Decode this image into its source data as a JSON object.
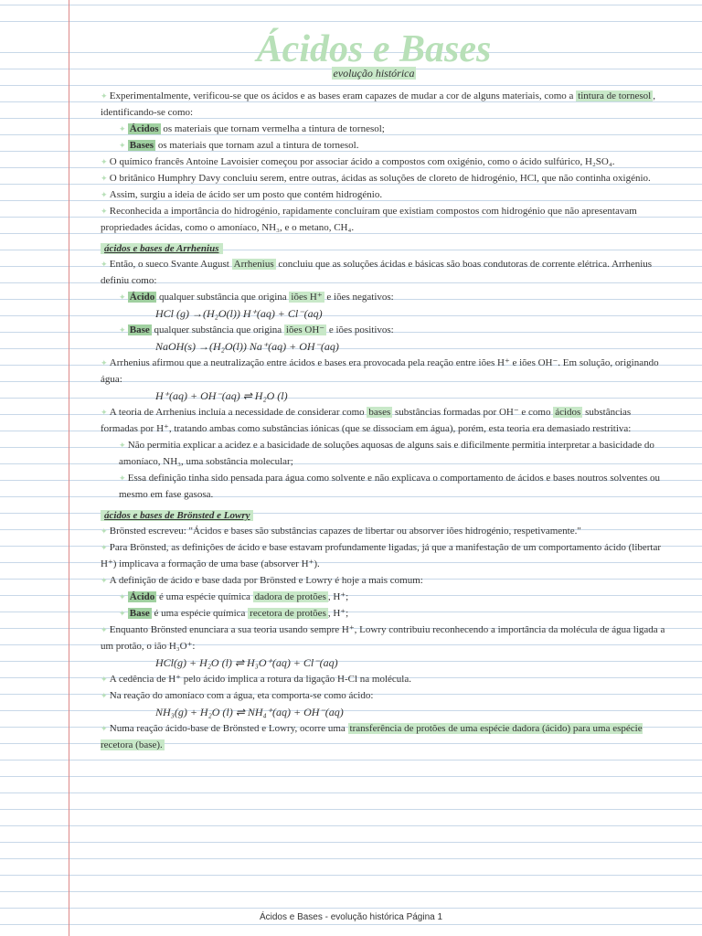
{
  "title": "Ácidos e Bases",
  "subtitle": "evolução histórica",
  "p1": "Experimentalmente, verificou-se que os ácidos e as bases eram capazes de mudar a cor de alguns materiais, como a ",
  "p1h": "tintura de tornesol",
  "p1b": ", identificando-se como:",
  "li1a": "Ácidos",
  "li1b": " os materiais que tornam vermelha a tintura de tornesol;",
  "li2a": "Bases",
  "li2b": " os materiais que tornam azul a tintura de tornesol.",
  "p2": "O químico francês Antoine Lavoisier começou por associar ácido a compostos com oxigénio, como o ácido sulfúrico, H₂SO₄.",
  "p3": "O britânico Humphry Davy concluiu serem, entre outras, ácidas as soluções de cloreto de hidrogénio, HCl, que não continha oxigénio.",
  "p4": "Assim, surgiu a ideia de ácido ser um posto que contém hidrogénio.",
  "p5": "Reconhecida a importância do hidrogénio, rapidamente concluíram que existiam compostos com hidrogénio que não apresentavam propriedades ácidas, como o amoníaco, NH₃, e o metano, CH₄.",
  "sec1": "ácidos e bases de Arrhenius",
  "s1p1": "Então, o sueco Svante August ",
  "s1p1h": "Arrhenius",
  "s1p1b": " concluiu que as soluções ácidas e básicas são boas condutoras de corrente elétrica. Arrhenius definiu como:",
  "s1li1a": "Ácido",
  "s1li1b": " qualquer substância que origina ",
  "s1li1c": "iões H⁺",
  "s1li1d": " e iões negativos:",
  "s1f1": "HCl (g) →(H₂O(l)) H⁺(aq) + Cl⁻(aq)",
  "s1li2a": "Base",
  "s1li2b": " qualquer substância que origina ",
  "s1li2c": "iões OH⁻",
  "s1li2d": " e iões positivos:",
  "s1f2": "NaOH(s) →(H₂O(l)) Na⁺(aq) + OH⁻(aq)",
  "s1p2": "Arrhenius afirmou que a neutralização entre ácidos e bases era provocada pela reação entre iões H⁺ e iões OH⁻. Em solução, originando água:",
  "s1f3": "H⁺(aq) + OH⁻(aq) ⇌ H₂O (l)",
  "s1p3a": "A teoria de Arrhenius incluía a necessidade de considerar como ",
  "s1p3h1": "bases",
  "s1p3b": " substâncias formadas por OH⁻ e como ",
  "s1p3h2": "ácidos",
  "s1p3c": " substâncias formadas por H⁺, tratando ambas como substâncias iónicas (que se dissociam em água), porém, esta teoria era demasiado restritiva:",
  "s1p4": "Não permitia explicar a acidez e a basicidade de soluções aquosas de alguns sais e dificilmente permitia interpretar a basicidade do amoníaco, NH₃, uma sobstância molecular;",
  "s1p5": "Essa definição tinha sido pensada para água como solvente e não explicava o comportamento de ácidos e bases noutros solventes ou mesmo em fase gasosa.",
  "sec2": "ácidos e bases de Brönsted e Lowry",
  "s2p1": "Brönsted escreveu: \"Ácidos e bases são substâncias capazes de libertar ou absorver iões hidrogénio, respetivamente.\"",
  "s2p2": "Para Brönsted, as definições de ácido e base estavam profundamente ligadas, já que a manifestação de um comportamento ácido (libertar H⁺) implicava a formação de uma base (absorver H⁺).",
  "s2p3": "A definição de ácido e base dada por Brönsted e Lowry é hoje a mais comum:",
  "s2li1a": "Ácido",
  "s2li1b": " é uma espécie química ",
  "s2li1c": "dadora de protões",
  "s2li1d": ", H⁺;",
  "s2li2a": "Base",
  "s2li2b": " é uma espécie química ",
  "s2li2c": "recetora de protões",
  "s2li2d": ", H⁺;",
  "s2p4": "Enquanto Brönsted enunciara a sua teoria usando sempre H⁺, Lowry contribuiu reconhecendo a importância da molécula de água ligada a um protão, o ião H₃O⁺:",
  "s2f1": "HCl(g) + H₂O (l) ⇌ H₃O⁺(aq) + Cl⁻(aq)",
  "s2p5": "A cedência de H⁺ pelo ácido implica a rotura da ligação H-Cl na molécula.",
  "s2p6": "Na reação do amoníaco com a água, eta comporta-se como ácido:",
  "s2f2": "NH₃(g) + H₂O (l) ⇌ NH₄⁺(aq) + OH⁻(aq)",
  "s2p7a": "Numa reação ácido-base de Brönsted e Lowry, ocorre uma ",
  "s2p7h": "transferência de protões de uma espécie dadora (ácido) para uma espécie recetora (base).",
  "footer": "Ácidos e Bases - evolução histórica Página 1"
}
